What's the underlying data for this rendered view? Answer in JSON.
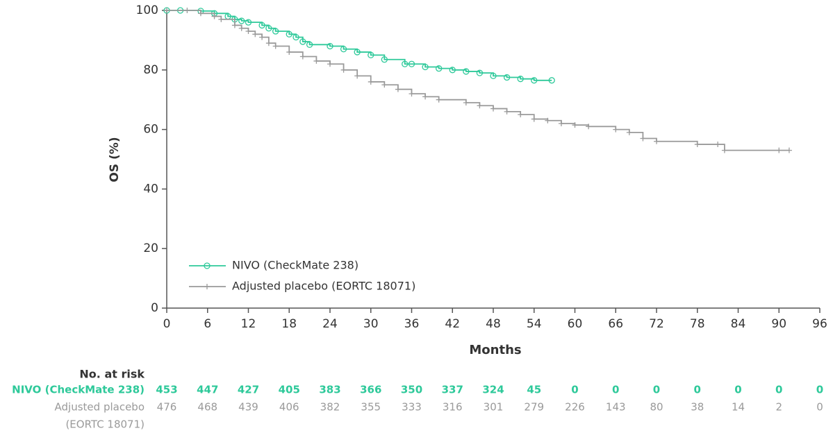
{
  "chart_data": {
    "type": "step",
    "y_label": "OS (%)",
    "x_label": "Months",
    "xlim": [
      0,
      96
    ],
    "xticks": [
      0,
      6,
      12,
      18,
      24,
      30,
      36,
      42,
      48,
      54,
      60,
      66,
      72,
      78,
      84,
      90,
      96
    ],
    "ylim": [
      0,
      100
    ],
    "yticks": [
      0,
      20,
      40,
      60,
      80,
      100
    ],
    "legend": "lower left",
    "series": [
      {
        "name": "NIVO (CheckMate 238)",
        "color": "#2ec99a",
        "marker": "circle",
        "x": [
          0,
          2,
          5,
          7,
          9,
          10,
          11,
          12,
          14,
          15,
          16,
          18,
          19,
          20,
          21,
          24,
          26,
          28,
          30,
          32,
          35,
          36,
          38,
          40,
          42,
          44,
          46,
          48,
          50,
          52,
          54,
          56.6
        ],
        "values": [
          100,
          100,
          99.8,
          99,
          98,
          97,
          96.5,
          96,
          95,
          94,
          93,
          92,
          91,
          89.5,
          88.5,
          88,
          87,
          86,
          85,
          83.5,
          82,
          82,
          81,
          80.5,
          80,
          79.5,
          79,
          78,
          77.5,
          77,
          76.5,
          76.5
        ]
      },
      {
        "name": "Adjusted placebo (EORTC 18071)",
        "color": "#9a9a9a",
        "marker": "plus",
        "x": [
          0,
          3,
          5,
          7,
          8,
          10,
          11,
          12,
          13,
          14,
          15,
          16,
          18,
          20,
          22,
          24,
          26,
          28,
          30,
          32,
          34,
          36,
          38,
          40,
          44,
          46,
          48,
          50,
          52,
          54,
          56,
          58,
          60,
          62,
          66,
          68,
          70,
          72,
          78,
          81,
          82,
          90,
          91.5
        ],
        "values": [
          100,
          100,
          99,
          98,
          97,
          95,
          94,
          93,
          92,
          91,
          89,
          88,
          86,
          84.5,
          83,
          82,
          80,
          78,
          76,
          75,
          73.5,
          72,
          71,
          70,
          69,
          68,
          67,
          66,
          65,
          63.5,
          63,
          62,
          61.5,
          61,
          60,
          59,
          57,
          56,
          55,
          55,
          53,
          53,
          53
        ]
      }
    ]
  },
  "risk_table": {
    "title": "No. at risk",
    "rows": [
      {
        "label": [
          "NIVO (CheckMate 238)"
        ],
        "color": "#2ec99a",
        "values": [
          453,
          447,
          427,
          405,
          383,
          366,
          350,
          337,
          324,
          45,
          0,
          0,
          0,
          0,
          0,
          0,
          0
        ]
      },
      {
        "label": [
          "Adjusted placebo",
          "(EORTC 18071)"
        ],
        "color": "#9a9a9a",
        "values": [
          476,
          468,
          439,
          406,
          382,
          355,
          333,
          316,
          301,
          279,
          226,
          143,
          80,
          38,
          14,
          2,
          0
        ]
      }
    ]
  }
}
